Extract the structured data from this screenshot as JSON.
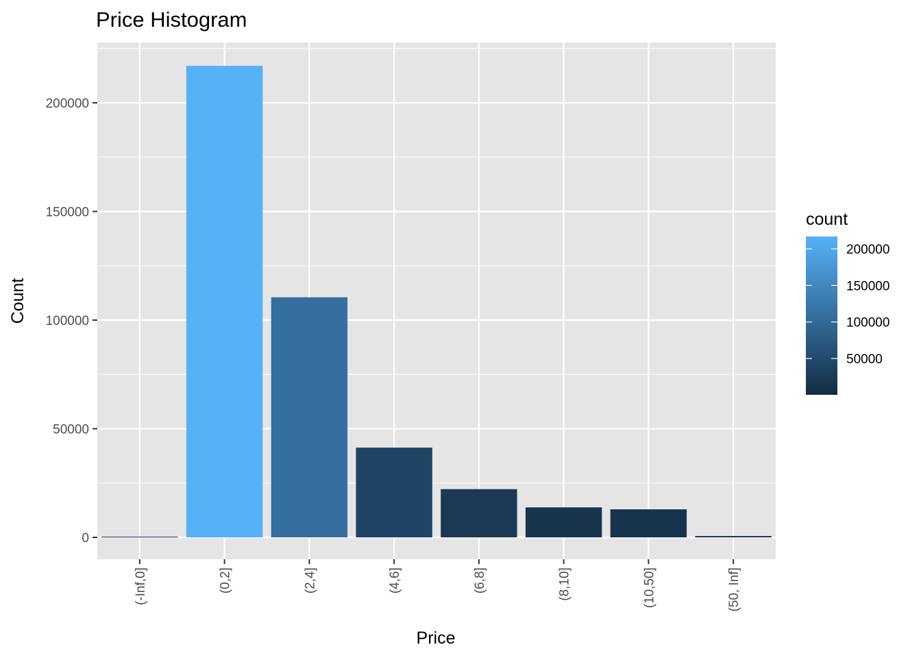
{
  "chart_data": {
    "type": "bar",
    "title": "Price Histogram",
    "xlabel": "Price",
    "ylabel": "Count",
    "categories": [
      "(-Inf,0]",
      "(0,2]",
      "(2,4]",
      "(4,6]",
      "(6,8]",
      "(8,10]",
      "(10,50]",
      "(50, Inf]"
    ],
    "values": [
      300,
      217000,
      110500,
      41300,
      22200,
      13800,
      12900,
      600
    ],
    "ylim": [
      -10000,
      226000
    ],
    "yticks": [
      0,
      50000,
      100000,
      150000,
      200000
    ],
    "ytick_labels": [
      "0",
      "50000",
      "100000",
      "150000",
      "200000"
    ],
    "grid": true,
    "panel_background": "#e5e5e5",
    "grid_color": "#ffffff",
    "legend": {
      "title": "count",
      "position": "right",
      "type": "colorbar",
      "range": [
        300,
        217000
      ],
      "ticks": [
        50000,
        100000,
        150000,
        200000
      ],
      "tick_labels": [
        "50000",
        "100000",
        "150000",
        "200000"
      ],
      "low_color": "#132b43",
      "high_color": "#56b1f7"
    }
  }
}
